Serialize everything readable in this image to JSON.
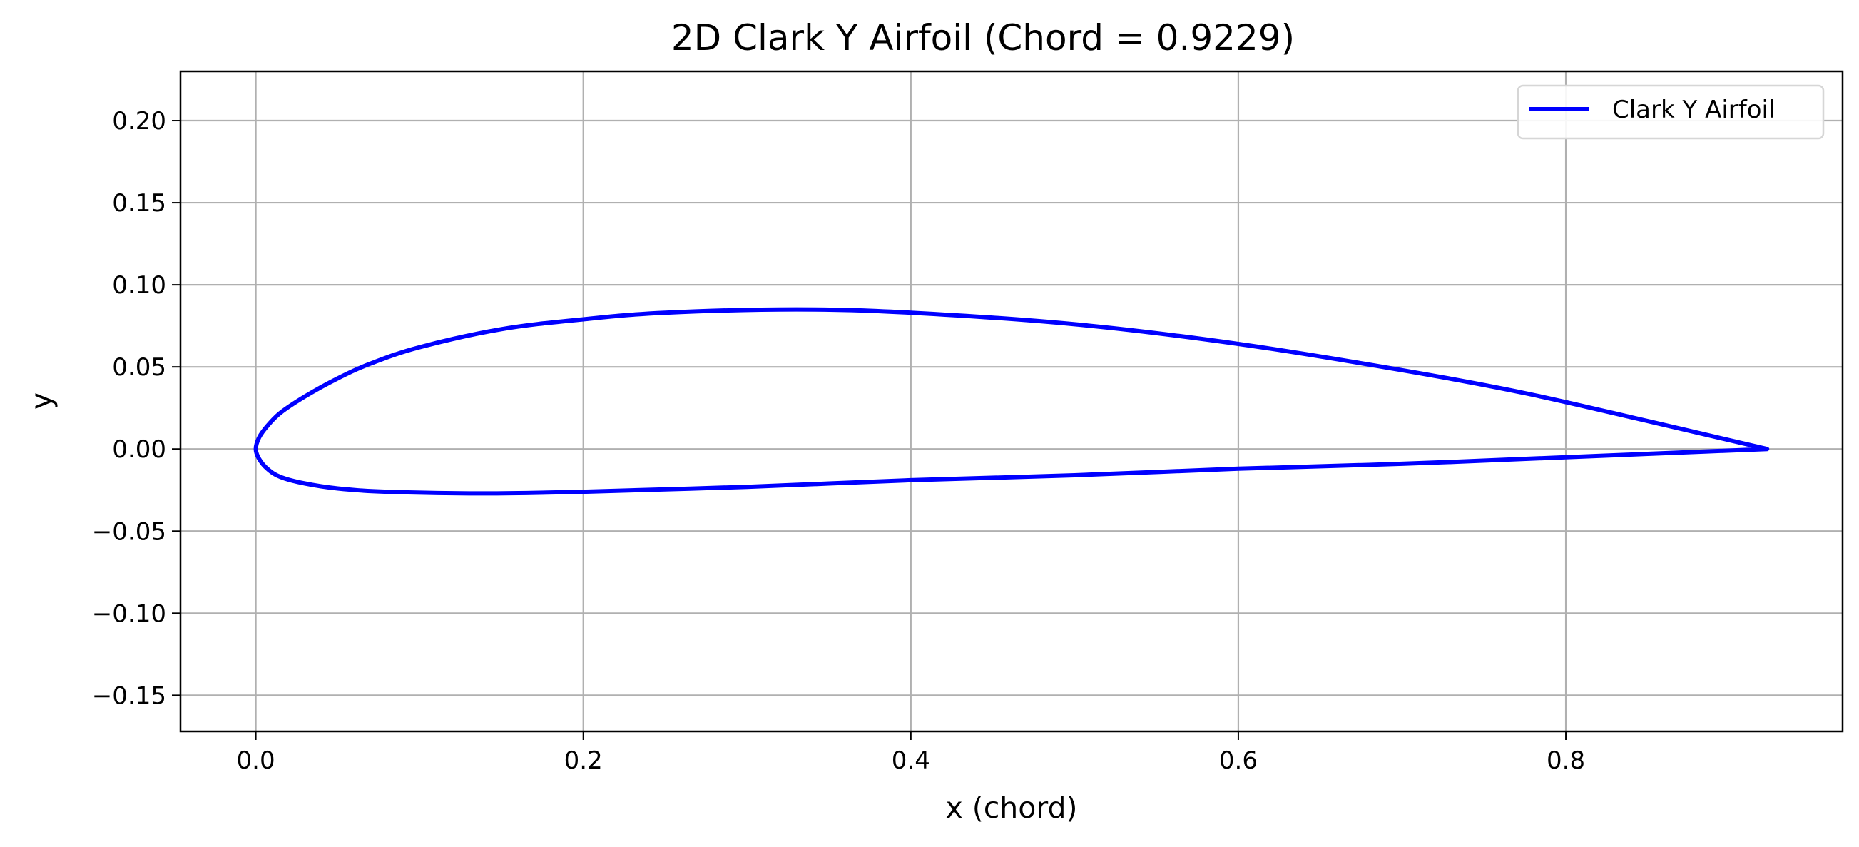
{
  "chart_data": {
    "type": "line",
    "title": "2D Clark Y Airfoil (Chord = 0.9229)",
    "xlabel": "x (chord)",
    "ylabel": "y",
    "xlim": [
      -0.046,
      0.969
    ],
    "ylim": [
      -0.172,
      0.23
    ],
    "xticks": [
      0.0,
      0.2,
      0.4,
      0.6,
      0.8
    ],
    "xtick_labels": [
      "0.0",
      "0.2",
      "0.4",
      "0.6",
      "0.8"
    ],
    "yticks": [
      0.2,
      0.15,
      0.1,
      0.05,
      0.0,
      -0.05,
      -0.1,
      -0.15
    ],
    "ytick_labels": [
      "0.20",
      "0.15",
      "0.10",
      "0.05",
      "0.00",
      "−0.05",
      "−0.10",
      "−0.15"
    ],
    "grid": true,
    "legend": {
      "position": "top-right",
      "entries": [
        "Clark Y Airfoil"
      ]
    },
    "series": [
      {
        "name": "Clark Y Airfoil",
        "color": "#0000ff",
        "x": [
          0.9229,
          0.85,
          0.775,
          0.7,
          0.6,
          0.5,
          0.4,
          0.33,
          0.25,
          0.2,
          0.15,
          0.1,
          0.07,
          0.05,
          0.03,
          0.015,
          0.007,
          0.002,
          0.0,
          0.002,
          0.007,
          0.015,
          0.03,
          0.05,
          0.08,
          0.14,
          0.2,
          0.3,
          0.4,
          0.5,
          0.6,
          0.7,
          0.8,
          0.9229
        ],
        "y": [
          0.0,
          0.017,
          0.034,
          0.048,
          0.064,
          0.076,
          0.083,
          0.085,
          0.083,
          0.079,
          0.073,
          0.062,
          0.052,
          0.043,
          0.032,
          0.022,
          0.014,
          0.007,
          0.0,
          -0.006,
          -0.012,
          -0.017,
          -0.021,
          -0.024,
          -0.026,
          -0.027,
          -0.026,
          -0.023,
          -0.019,
          -0.016,
          -0.012,
          -0.009,
          -0.005,
          0.0
        ]
      }
    ]
  }
}
